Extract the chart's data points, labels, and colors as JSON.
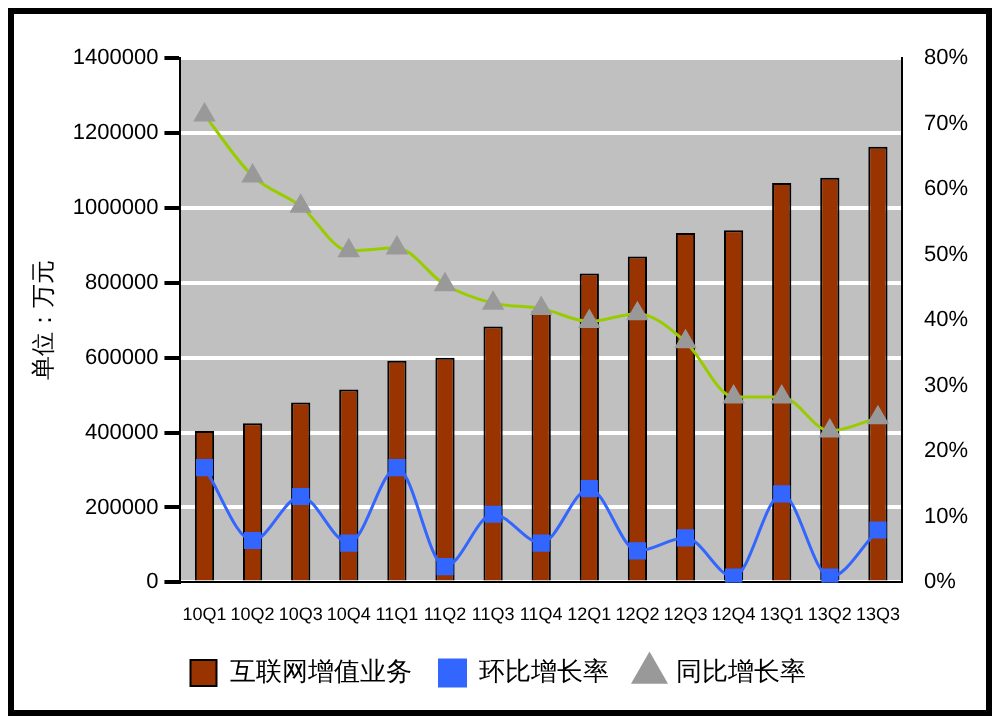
{
  "chart_data": {
    "type": "bar",
    "ylabel": "单位：万元",
    "categories": [
      "10Q1",
      "10Q2",
      "10Q3",
      "10Q4",
      "11Q1",
      "11Q2",
      "11Q3",
      "11Q4",
      "12Q1",
      "12Q2",
      "12Q3",
      "12Q4",
      "13Q1",
      "13Q2",
      "13Q3"
    ],
    "series": [
      {
        "name": "互联网增值业务",
        "color": "#993300",
        "values": [
          404000,
          425000,
          480000,
          515000,
          592000,
          600000,
          683000,
          725000,
          825000,
          870000,
          933000,
          940000,
          1066000,
          1080000,
          1163000
        ]
      },
      {
        "name": "环比增长率",
        "type": "line",
        "axis": "y2",
        "color": "#3366ff",
        "marker": "square",
        "values": [
          17.5,
          6.4,
          13.1,
          6.0,
          17.5,
          2.4,
          10.4,
          6.0,
          14.3,
          4.8,
          6.8,
          0.8,
          13.5,
          0.8,
          8.0
        ]
      },
      {
        "name": "同比增长率",
        "type": "line",
        "axis": "y2",
        "color": "#99cc00",
        "marker": "triangle",
        "values": [
          71.3,
          62.0,
          57.4,
          50.6,
          51.0,
          45.4,
          42.6,
          41.8,
          39.8,
          41.0,
          36.7,
          28.3,
          28.3,
          23.1,
          25.1
        ]
      }
    ],
    "ylim": [
      0,
      1400000
    ],
    "yticks": [
      0,
      200000,
      400000,
      600000,
      800000,
      1000000,
      1200000,
      1400000
    ],
    "y2lim": [
      0,
      80
    ],
    "y2ticks": [
      {
        "value": 0,
        "label": "0%"
      },
      {
        "value": 10,
        "label": "10%"
      },
      {
        "value": 20,
        "label": "20%"
      },
      {
        "value": 30,
        "label": "30%"
      },
      {
        "value": 40,
        "label": "40%"
      },
      {
        "value": 50,
        "label": "50%"
      },
      {
        "value": 60,
        "label": "60%"
      },
      {
        "value": 70,
        "label": "70%"
      },
      {
        "value": 80,
        "label": "80%"
      }
    ],
    "grid": "y",
    "legend": "bottom"
  }
}
